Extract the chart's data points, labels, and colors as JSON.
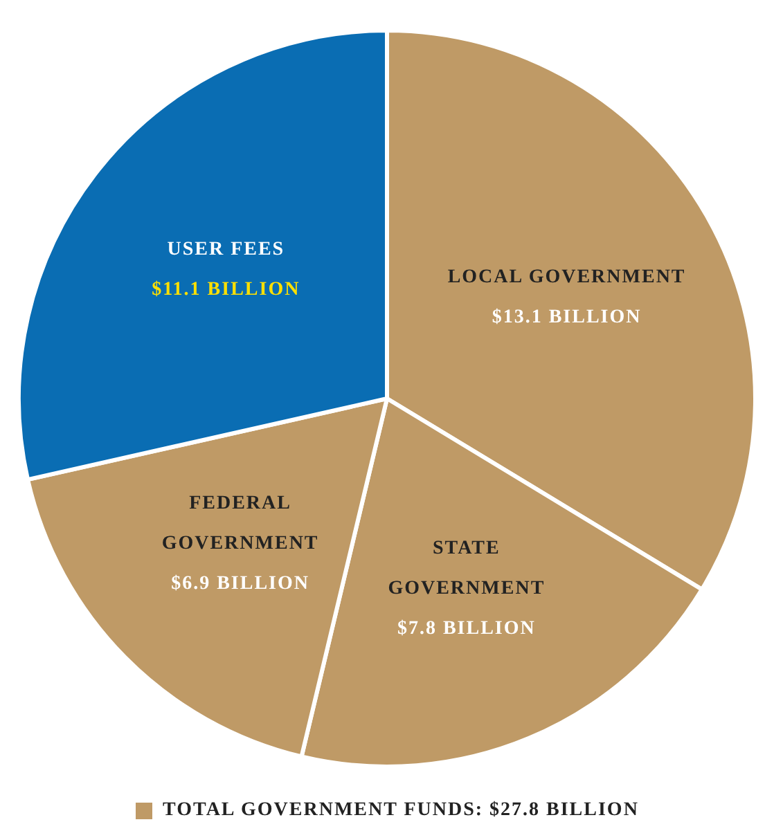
{
  "chart_data": {
    "type": "pie",
    "categories": [
      "LOCAL GOVERNMENT",
      "STATE GOVERNMENT",
      "FEDERAL GOVERNMENT",
      "USER FEES"
    ],
    "values": [
      13.1,
      7.8,
      6.9,
      11.1
    ],
    "value_labels": [
      "$13.1 BILLION",
      "$7.8 BILLION",
      "$6.9 BILLION",
      "$11.1 BILLION"
    ],
    "colors": [
      "#bf9a66",
      "#bf9a66",
      "#bf9a66",
      "#0a6db3"
    ],
    "annotations": [
      "TOTAL GOVERNMENT FUNDS: $27.8 BILLION"
    ],
    "legend": false
  }
}
